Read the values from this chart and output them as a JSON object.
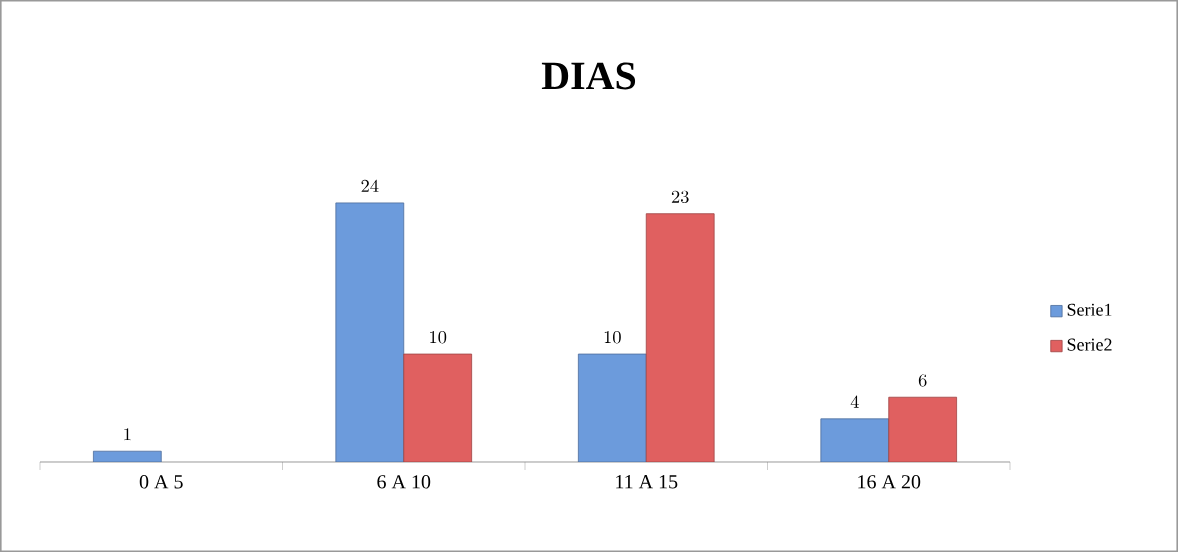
{
  "chart_data": {
    "type": "bar",
    "title": "DIAS",
    "categories": [
      "0 A 5",
      "6 A 10",
      "11 A 15",
      "16 A 20"
    ],
    "series": [
      {
        "name": "Serie1",
        "color": "#6c9bdc",
        "values": [
          1,
          24,
          10,
          4
        ]
      },
      {
        "name": "Serie2",
        "color": "#e06060",
        "values": [
          null,
          10,
          23,
          6
        ]
      }
    ],
    "data_labels": true,
    "legend": "right"
  }
}
